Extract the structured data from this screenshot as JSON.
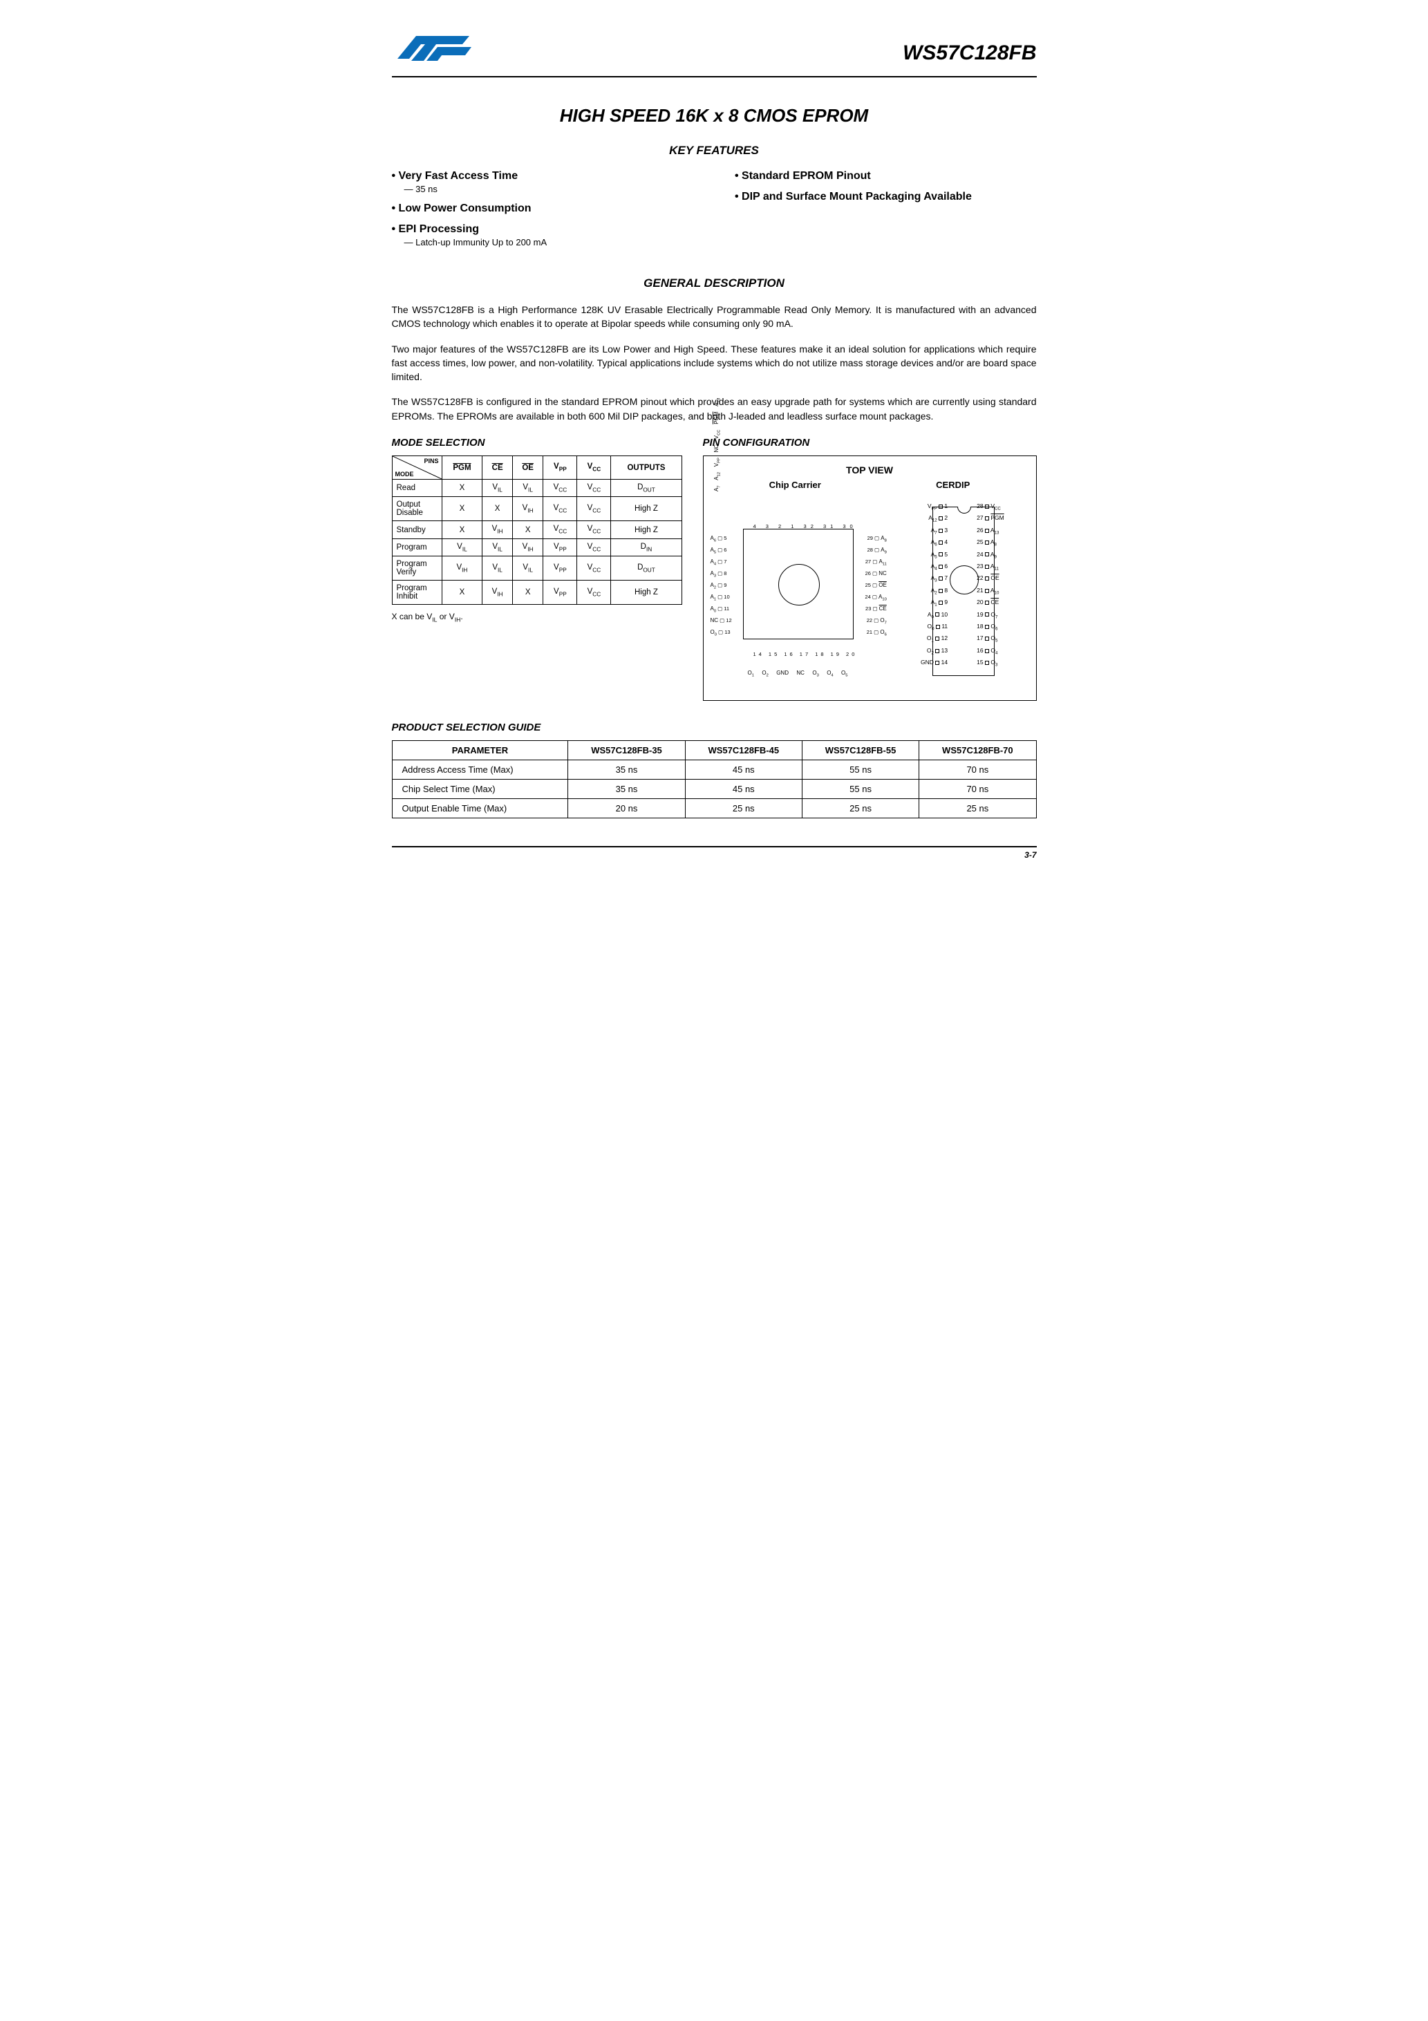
{
  "partNumber": "WS57C128FB",
  "mainTitle": "HIGH SPEED 16K x 8 CMOS EPROM",
  "sectionKeyFeatures": "KEY FEATURES",
  "featuresLeft": [
    {
      "title": "Very Fast Access Time",
      "sub": "— 35 ns"
    },
    {
      "title": "Low Power Consumption",
      "sub": ""
    },
    {
      "title": "EPI Processing",
      "sub": "— Latch-up Immunity Up to 200 mA"
    }
  ],
  "featuresRight": [
    {
      "title": "Standard EPROM Pinout",
      "sub": ""
    },
    {
      "title": "DIP and Surface Mount Packaging Available",
      "sub": ""
    }
  ],
  "sectionGeneralDesc": "GENERAL DESCRIPTION",
  "descParas": [
    "The WS57C128FB is a High Performance 128K UV Erasable Electrically Programmable Read Only Memory. It is manufactured with an advanced CMOS technology which enables it to operate at Bipolar speeds while consuming only 90 mA.",
    "Two major features of the WS57C128FB are its Low Power and High Speed. These features make it an ideal solution for applications which require fast access times, low power, and non-volatility. Typical applications include systems which do not utilize mass storage devices and/or are board space limited.",
    "The WS57C128FB is configured in the standard EPROM pinout which provides an easy upgrade path for systems which are currently using standard EPROMs. The EPROMs are available in both 600 Mil DIP packages, and both J-leaded and leadless surface mount packages."
  ],
  "modeSelectionTitle": "MODE SELECTION",
  "pinConfigTitle": "PIN CONFIGURATION",
  "modeHeaders": {
    "pins": "PINS",
    "mode": "MODE"
  },
  "modeCols": [
    "PGM",
    "CE",
    "OE",
    "V_PP",
    "V_CC",
    "OUTPUTS"
  ],
  "modeRows": [
    {
      "name": "Read",
      "cells": [
        "X",
        "V_IL",
        "V_IL",
        "V_CC",
        "V_CC",
        "D_OUT"
      ]
    },
    {
      "name": "Output Disable",
      "cells": [
        "X",
        "X",
        "V_IH",
        "V_CC",
        "V_CC",
        "High Z"
      ]
    },
    {
      "name": "Standby",
      "cells": [
        "X",
        "V_IH",
        "X",
        "V_CC",
        "V_CC",
        "High Z"
      ]
    },
    {
      "name": "Program",
      "cells": [
        "V_IL",
        "V_IL",
        "V_IH",
        "V_PP",
        "V_CC",
        "D_IN"
      ]
    },
    {
      "name": "Program Verify",
      "cells": [
        "V_IH",
        "V_IL",
        "V_IL",
        "V_PP",
        "V_CC",
        "D_OUT"
      ]
    },
    {
      "name": "Program Inhibit",
      "cells": [
        "X",
        "V_IH",
        "X",
        "V_PP",
        "V_CC",
        "High Z"
      ]
    }
  ],
  "modeNote": "X can be V_IL or V_IH.",
  "topViewLabel": "TOP VIEW",
  "chipCarrierLabel": "Chip Carrier",
  "cerdipLabel": "CERDIP",
  "plccTopLabels": [
    "A_7",
    "A_12",
    "V_PP",
    "NC",
    "V_CC",
    "PGM",
    "A_13"
  ],
  "plccLeft": [
    {
      "p": "5",
      "l": "A_6"
    },
    {
      "p": "6",
      "l": "A_5"
    },
    {
      "p": "7",
      "l": "A_4"
    },
    {
      "p": "8",
      "l": "A_3"
    },
    {
      "p": "9",
      "l": "A_2"
    },
    {
      "p": "10",
      "l": "A_1"
    },
    {
      "p": "11",
      "l": "A_0"
    },
    {
      "p": "12",
      "l": "NC"
    },
    {
      "p": "13",
      "l": "O_0"
    }
  ],
  "plccRight": [
    {
      "p": "29",
      "l": "A_8"
    },
    {
      "p": "28",
      "l": "A_9"
    },
    {
      "p": "27",
      "l": "A_11"
    },
    {
      "p": "26",
      "l": "NC"
    },
    {
      "p": "25",
      "l": "OE"
    },
    {
      "p": "24",
      "l": "A_10"
    },
    {
      "p": "23",
      "l": "CE"
    },
    {
      "p": "22",
      "l": "O_7"
    },
    {
      "p": "21",
      "l": "O_6"
    }
  ],
  "plccBottomLabels": [
    "O_1",
    "O_2",
    "GND",
    "NC",
    "O_3",
    "O_4",
    "O_5"
  ],
  "plccBottomNums": "14 15 16 17 18 19 20",
  "plccTopNums": "4  3  2  1 32 31 30",
  "cerdipPins": [
    {
      "l": "V_PP",
      "ln": "1",
      "rn": "28",
      "r": "V_CC"
    },
    {
      "l": "A_12",
      "ln": "2",
      "rn": "27",
      "r": "PGM"
    },
    {
      "l": "A_7",
      "ln": "3",
      "rn": "26",
      "r": "A_13"
    },
    {
      "l": "A_6",
      "ln": "4",
      "rn": "25",
      "r": "A_8"
    },
    {
      "l": "A_5",
      "ln": "5",
      "rn": "24",
      "r": "A_9"
    },
    {
      "l": "A_4",
      "ln": "6",
      "rn": "23",
      "r": "A_11"
    },
    {
      "l": "A_3",
      "ln": "7",
      "rn": "22",
      "r": "OE"
    },
    {
      "l": "A_2",
      "ln": "8",
      "rn": "21",
      "r": "A_10"
    },
    {
      "l": "A_1",
      "ln": "9",
      "rn": "20",
      "r": "CE"
    },
    {
      "l": "A_0",
      "ln": "10",
      "rn": "19",
      "r": "O_7"
    },
    {
      "l": "O_0",
      "ln": "11",
      "rn": "18",
      "r": "O_6"
    },
    {
      "l": "O_1",
      "ln": "12",
      "rn": "17",
      "r": "O_5"
    },
    {
      "l": "O_2",
      "ln": "13",
      "rn": "16",
      "r": "O_4"
    },
    {
      "l": "GND",
      "ln": "14",
      "rn": "15",
      "r": "O_3"
    }
  ],
  "guideTitle": "PRODUCT SELECTION GUIDE",
  "guideHeaders": [
    "PARAMETER",
    "WS57C128FB-35",
    "WS57C128FB-45",
    "WS57C128FB-55",
    "WS57C128FB-70"
  ],
  "guideRows": [
    {
      "p": "Address Access Time (Max)",
      "v": [
        "35 ns",
        "45 ns",
        "55 ns",
        "70 ns"
      ]
    },
    {
      "p": "Chip Select Time (Max)",
      "v": [
        "35 ns",
        "45 ns",
        "55 ns",
        "70 ns"
      ]
    },
    {
      "p": "Output Enable Time (Max)",
      "v": [
        "20 ns",
        "25 ns",
        "25 ns",
        "25 ns"
      ]
    }
  ],
  "pageNum": "3-7",
  "colors": {
    "brand": "#0a6db9"
  }
}
